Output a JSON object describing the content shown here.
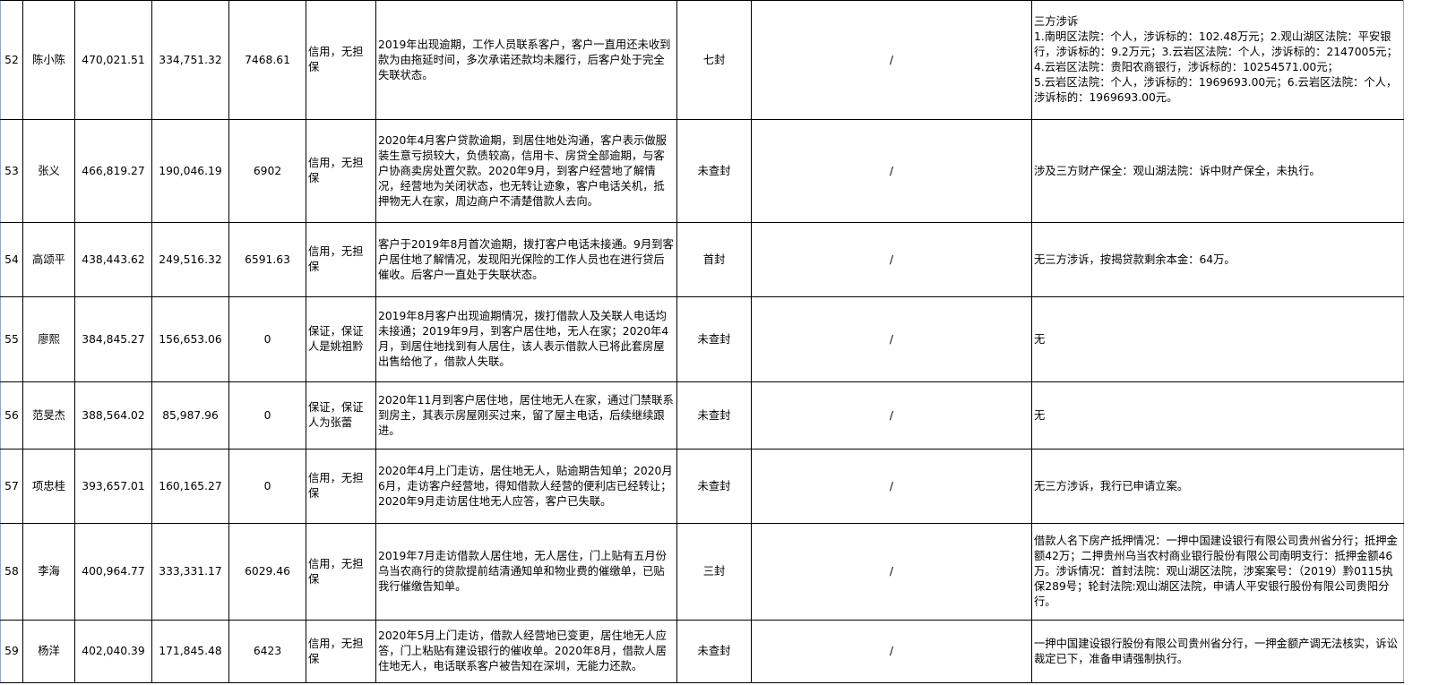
{
  "rows": [
    {
      "no": "52",
      "name": "陈小陈",
      "amount1": "470,021.51",
      "amount2": "334,751.32",
      "amount3": "7468.61",
      "guarantee": "信用，无担保",
      "progress": "2019年出现逾期，工作人员联系客户，客户一直用还未收到款为由拖延时间，多次承诺还款均未履行，后客户处于完全失联状态。",
      "seal": "七封",
      "col9": "/",
      "litigation": "三方涉诉\n1.南明区法院：个人，涉诉标的：102.48万元；2.观山湖区法院：平安银行，涉诉标的：9.2万元；3.云岩区法院：个人，涉诉标的：2147005元；4.云岩区法院：贵阳农商银行，涉诉标的：10254571.00元；\n5.云岩区法院：个人，涉诉标的：1969693.00元；6.云岩区法院：个人，涉诉标的：1969693.00元。"
    },
    {
      "no": "53",
      "name": "张义",
      "amount1": "466,819.27",
      "amount2": "190,046.19",
      "amount3": "6902",
      "guarantee": "信用，无担保",
      "progress": "2020年4月客户贷款逾期，到居住地处沟通，客户表示做服装生意亏损较大，负债较高，信用卡、房贷全部逾期，与客户协商卖房处置欠款。2020年9月，到客户经营地了解情况，经营地为关闭状态，也无转让迹象，客户电话关机，抵押物无人在家，周边商户不清楚借款人去向。",
      "seal": "未查封",
      "col9": "/",
      "litigation": "涉及三方财产保全：观山湖法院：诉中财产保全，未执行。"
    },
    {
      "no": "54",
      "name": "高颂平",
      "amount1": "438,443.62",
      "amount2": "249,516.32",
      "amount3": "6591.63",
      "guarantee": "信用，无担保",
      "progress": "客户于2019年8月首次逾期，拨打客户电话未接通。9月到客户居住地了解情况，发现阳光保险的工作人员也在进行贷后催收。后客户一直处于失联状态。",
      "seal": "首封",
      "col9": "/",
      "litigation": "无三方涉诉，按揭贷款剩余本金：64万。"
    },
    {
      "no": "55",
      "name": "廖熙",
      "amount1": "384,845.27",
      "amount2": "156,653.06",
      "amount3": "0",
      "guarantee": "保证，保证人是姚祖黔",
      "progress": "2019年8月客户出现逾期情况，拨打借款人及关联人电话均未接通；2019年9月，到客户居住地，无人在家；2020年4月，到居住地找到有人居住，该人表示借款人已将此套房屋出售给他了，借款人失联。",
      "seal": "未查封",
      "col9": "/",
      "litigation": "无"
    },
    {
      "no": "56",
      "name": "范旻杰",
      "amount1": "388,564.02",
      "amount2": "85,987.96",
      "amount3": "0",
      "guarantee": "保证，保证人为张蕾",
      "progress": "2020年11月到客户居住地，居住地无人在家，通过门禁联系到房主，其表示房屋刚买过来，留了屋主电话，后续继续跟进。",
      "seal": "未查封",
      "col9": "/",
      "litigation": "无"
    },
    {
      "no": "57",
      "name": "项忠桂",
      "amount1": "393,657.01",
      "amount2": "160,165.27",
      "amount3": "0",
      "guarantee": "信用，无担保",
      "progress": "2020年4月上门走访，居住地无人，贴逾期告知单；2020月6月，走访客户经营地，得知借款人经营的便利店已经转让；2020年9月走访居住地无人应答，客户已失联。",
      "seal": "未查封",
      "col9": "/",
      "litigation": "无三方涉诉，我行已申请立案。"
    },
    {
      "no": "58",
      "name": "李海",
      "amount1": "400,964.77",
      "amount2": "333,331.17",
      "amount3": "6029.46",
      "guarantee": "信用，无担保",
      "progress": "2019年7月走访借款人居住地，无人居住，门上贴有五月份乌当农商行的贷款提前结清通知单和物业费的催缴单，已贴我行催缴告知单。",
      "seal": "三封",
      "col9": "/",
      "litigation": "借款人名下房产抵押情况：一押中国建设银行有限公司贵州省分行；抵押金额42万；二押贵州乌当农村商业银行股份有限公司南明支行：抵押金额46万。涉诉情况：首封法院：观山湖区法院，涉案案号：（2019）黔0115执保289号；轮封法院:观山湖区法院，申请人平安银行股份有限公司贵阳分行。"
    },
    {
      "no": "59",
      "name": "杨洋",
      "amount1": "402,040.39",
      "amount2": "171,845.48",
      "amount3": "6423",
      "guarantee": "信用，无担保",
      "progress": "2020年5月上门走访，借款人经营地已变更，居住地无人应答，门上粘贴有建设银行的催收单。2020年8月，借款人居住地无人，电话联系客户被告知在深圳，无能力还款。",
      "seal": "未查封",
      "col9": "/",
      "litigation": "一押中国建设银行股份有限公司贵州省分行，一押金额产调无法核实，诉讼裁定已下，准备申请强制执行。"
    }
  ]
}
